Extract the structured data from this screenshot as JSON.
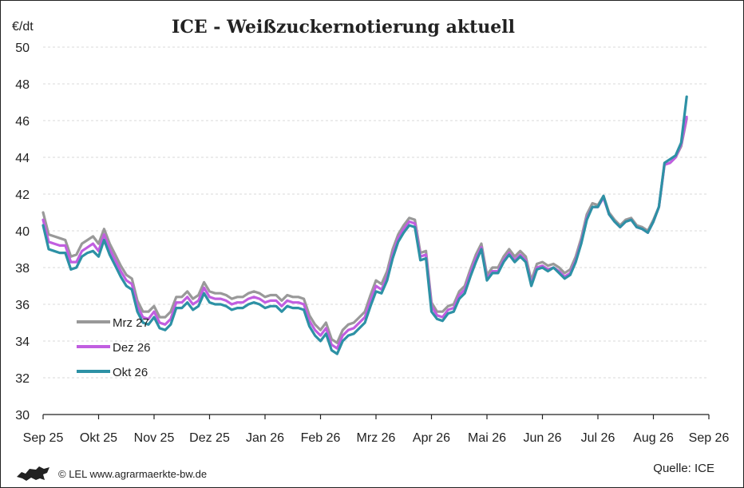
{
  "chart_data": {
    "type": "line",
    "title": "ICE - Weißzuckernotierung aktuell",
    "ylabel": "€/dt",
    "ylim": [
      30,
      50
    ],
    "yticks": [
      30,
      32,
      34,
      36,
      38,
      40,
      42,
      44,
      46,
      48,
      50
    ],
    "xlim": [
      0,
      12
    ],
    "xtick_labels": [
      "Sep 25",
      "Okt 25",
      "Nov 25",
      "Dez 25",
      "Jan 26",
      "Feb 26",
      "Mrz 26",
      "Apr 26",
      "Mai 26",
      "Jun 26",
      "Jul 26",
      "Aug 26",
      "Sep 26"
    ],
    "grid": "horizontal",
    "legend_position": "left",
    "x": [
      0.0,
      0.1,
      0.2,
      0.3,
      0.4,
      0.5,
      0.6,
      0.7,
      0.8,
      0.9,
      1.0,
      1.1,
      1.2,
      1.3,
      1.4,
      1.5,
      1.6,
      1.7,
      1.8,
      1.9,
      2.0,
      2.1,
      2.2,
      2.3,
      2.4,
      2.5,
      2.6,
      2.7,
      2.8,
      2.9,
      3.0,
      3.1,
      3.2,
      3.3,
      3.4,
      3.5,
      3.6,
      3.7,
      3.8,
      3.9,
      4.0,
      4.1,
      4.2,
      4.3,
      4.4,
      4.5,
      4.6,
      4.7,
      4.8,
      4.9,
      5.0,
      5.1,
      5.2,
      5.3,
      5.4,
      5.5,
      5.6,
      5.7,
      5.8,
      5.9,
      6.0,
      6.1,
      6.2,
      6.3,
      6.4,
      6.5,
      6.6,
      6.7,
      6.8,
      6.9,
      7.0,
      7.1,
      7.2,
      7.3,
      7.4,
      7.5,
      7.6,
      7.7,
      7.8,
      7.9,
      8.0,
      8.1,
      8.2,
      8.3,
      8.4,
      8.5,
      8.6,
      8.7,
      8.8,
      8.9,
      9.0,
      9.1,
      9.2,
      9.3,
      9.4,
      9.5,
      9.6,
      9.7,
      9.8,
      9.9,
      10.0,
      10.1,
      10.2,
      10.3,
      10.4,
      10.5,
      10.6,
      10.7,
      10.8,
      10.9,
      11.0,
      11.1,
      11.2,
      11.3,
      11.4,
      11.5,
      11.6
    ],
    "series": [
      {
        "name": "Mrz 27",
        "color": "#999999",
        "values": [
          41.0,
          39.8,
          39.7,
          39.6,
          39.5,
          38.6,
          38.7,
          39.3,
          39.5,
          39.7,
          39.3,
          40.1,
          39.3,
          38.7,
          38.1,
          37.6,
          37.4,
          36.2,
          35.6,
          35.6,
          35.9,
          35.3,
          35.3,
          35.6,
          36.4,
          36.4,
          36.7,
          36.3,
          36.5,
          37.2,
          36.7,
          36.6,
          36.6,
          36.5,
          36.3,
          36.4,
          36.4,
          36.6,
          36.7,
          36.6,
          36.4,
          36.5,
          36.5,
          36.2,
          36.5,
          36.4,
          36.4,
          36.3,
          35.4,
          34.9,
          34.6,
          35.0,
          34.1,
          33.9,
          34.6,
          34.9,
          35.0,
          35.3,
          35.6,
          36.5,
          37.3,
          37.1,
          37.8,
          39.0,
          39.8,
          40.3,
          40.7,
          40.6,
          38.8,
          38.9,
          36.1,
          35.6,
          35.6,
          35.9,
          36.0,
          36.7,
          37.0,
          37.9,
          38.7,
          39.3,
          37.6,
          38.0,
          38.0,
          38.6,
          39.0,
          38.6,
          38.9,
          38.6,
          37.3,
          38.2,
          38.3,
          38.1,
          38.2,
          38.0,
          37.7,
          37.9,
          38.6,
          39.6,
          40.9,
          41.5,
          41.4,
          41.9,
          41.0,
          40.6,
          40.3,
          40.6,
          40.7,
          40.3,
          40.2,
          40.0,
          40.6,
          41.3,
          43.6,
          43.7,
          44.0,
          44.6,
          46.1
        ]
      },
      {
        "name": "Dez 26",
        "color": "#c15ee0",
        "values": [
          40.6,
          39.4,
          39.3,
          39.2,
          39.2,
          38.3,
          38.3,
          38.9,
          39.1,
          39.3,
          38.9,
          39.8,
          39.0,
          38.4,
          37.8,
          37.3,
          37.1,
          35.9,
          35.3,
          35.2,
          35.6,
          35.0,
          34.9,
          35.2,
          36.1,
          36.1,
          36.4,
          36.0,
          36.2,
          36.9,
          36.4,
          36.3,
          36.3,
          36.2,
          36.0,
          36.1,
          36.1,
          36.3,
          36.4,
          36.3,
          36.1,
          36.2,
          36.2,
          35.9,
          36.2,
          36.1,
          36.1,
          36.0,
          35.1,
          34.6,
          34.3,
          34.7,
          33.8,
          33.6,
          34.3,
          34.6,
          34.7,
          35.0,
          35.3,
          36.2,
          37.0,
          36.8,
          37.5,
          38.7,
          39.6,
          40.1,
          40.5,
          40.4,
          38.6,
          38.7,
          35.9,
          35.4,
          35.3,
          35.7,
          35.8,
          36.5,
          36.8,
          37.7,
          38.5,
          39.1,
          37.4,
          37.8,
          37.8,
          38.4,
          38.8,
          38.4,
          38.7,
          38.4,
          37.1,
          38.0,
          38.1,
          37.9,
          38.0,
          37.8,
          37.5,
          37.7,
          38.4,
          39.4,
          40.7,
          41.3,
          41.3,
          41.8,
          40.9,
          40.5,
          40.2,
          40.5,
          40.6,
          40.2,
          40.1,
          39.9,
          40.5,
          41.3,
          43.6,
          43.7,
          44.0,
          44.7,
          46.2
        ]
      },
      {
        "name": "Okt 26",
        "color": "#2d91a5",
        "values": [
          40.3,
          39.0,
          38.9,
          38.8,
          38.8,
          37.9,
          38.0,
          38.6,
          38.8,
          38.9,
          38.6,
          39.5,
          38.7,
          38.1,
          37.5,
          37.0,
          36.8,
          35.6,
          35.0,
          34.9,
          35.3,
          34.7,
          34.6,
          34.9,
          35.8,
          35.8,
          36.1,
          35.7,
          35.9,
          36.6,
          36.1,
          36.0,
          36.0,
          35.9,
          35.7,
          35.8,
          35.8,
          36.0,
          36.1,
          36.0,
          35.8,
          35.9,
          35.9,
          35.6,
          35.9,
          35.8,
          35.8,
          35.7,
          34.8,
          34.3,
          34.0,
          34.4,
          33.5,
          33.3,
          34.0,
          34.3,
          34.4,
          34.7,
          35.0,
          35.9,
          36.7,
          36.6,
          37.3,
          38.5,
          39.4,
          39.9,
          40.3,
          40.2,
          38.4,
          38.5,
          35.6,
          35.2,
          35.1,
          35.5,
          35.6,
          36.3,
          36.6,
          37.5,
          38.3,
          39.0,
          37.3,
          37.7,
          37.7,
          38.3,
          38.7,
          38.3,
          38.6,
          38.3,
          37.0,
          37.9,
          38.0,
          37.8,
          38.0,
          37.7,
          37.4,
          37.6,
          38.3,
          39.3,
          40.6,
          41.3,
          41.3,
          41.9,
          40.9,
          40.5,
          40.2,
          40.5,
          40.6,
          40.2,
          40.1,
          39.9,
          40.5,
          41.3,
          43.7,
          43.9,
          44.1,
          44.8,
          47.3
        ]
      }
    ],
    "source": "Quelle: ICE"
  },
  "footer": {
    "credit": "© LEL www.agrarmaerkte-bw.de"
  }
}
